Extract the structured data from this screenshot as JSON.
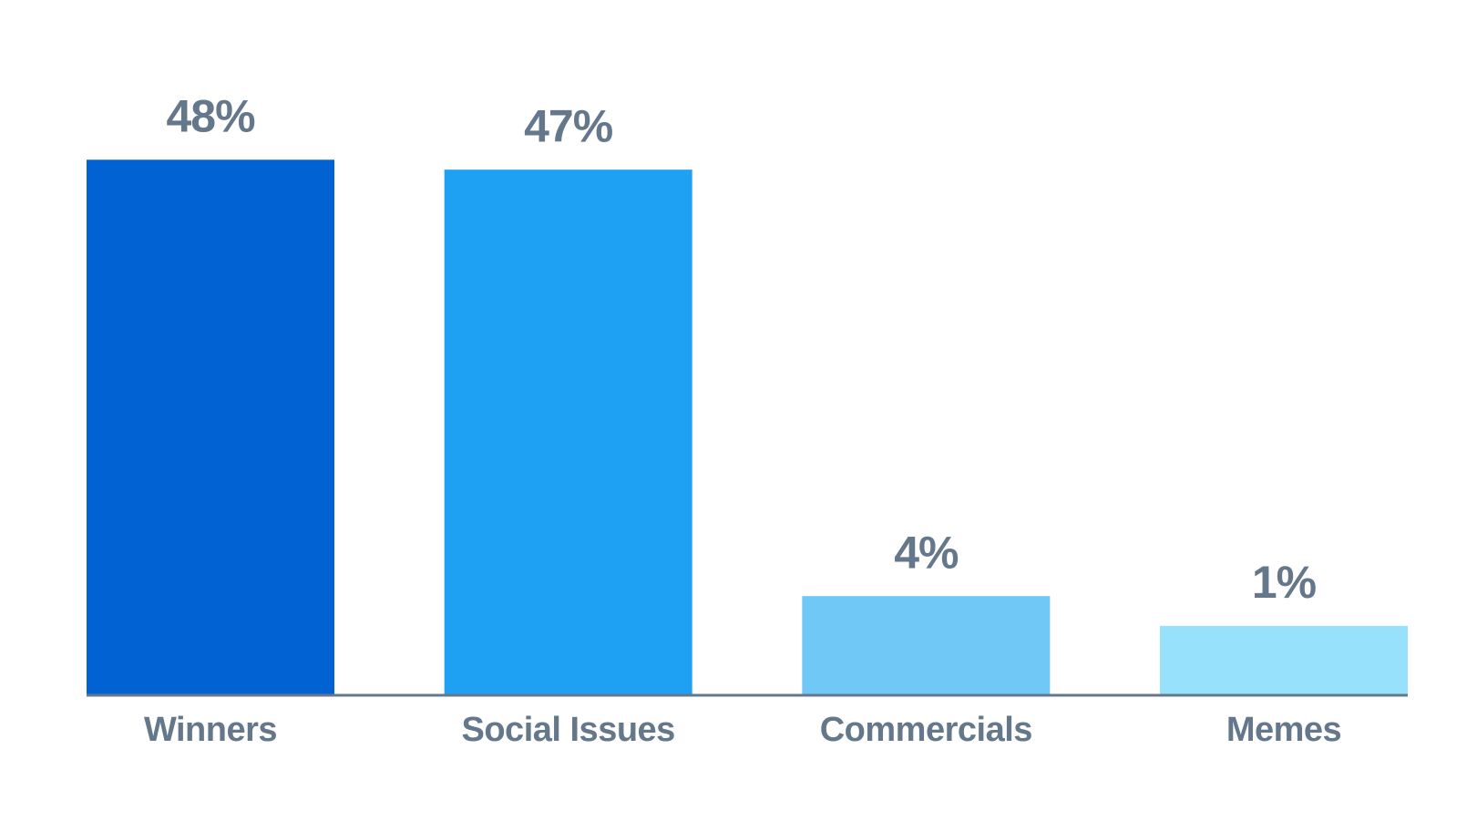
{
  "chart_data": {
    "type": "bar",
    "categories": [
      "Winners",
      "Social Issues",
      "Commercials",
      "Memes"
    ],
    "values": [
      48,
      47,
      4,
      1
    ],
    "value_labels": [
      "48%",
      "47%",
      "4%",
      "1%"
    ],
    "colors": [
      "#0062d3",
      "#1fa1f3",
      "#70c8f6",
      "#98e1fc"
    ],
    "ylim": [
      -6,
      54
    ],
    "axis_color": "#65788b"
  }
}
